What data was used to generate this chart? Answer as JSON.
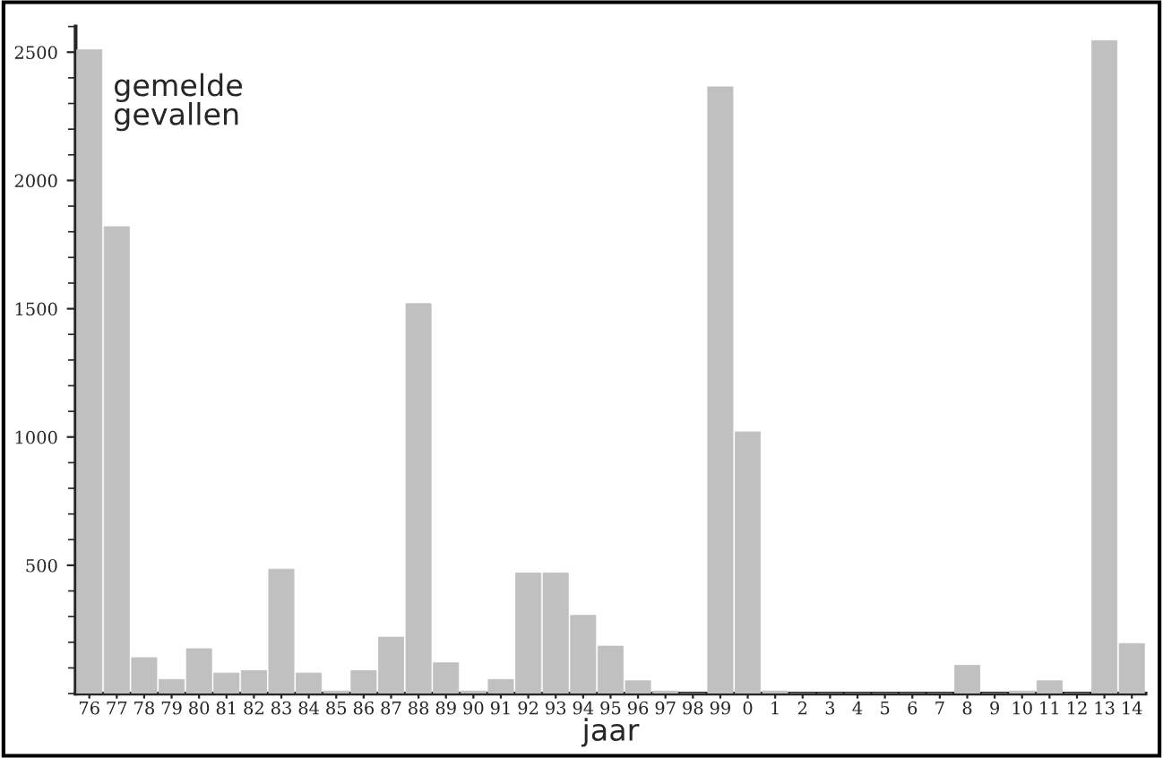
{
  "chart_data": {
    "type": "bar",
    "ylabel": "gemelde\ngevallen",
    "xlabel": "jaar",
    "categories": [
      "76",
      "77",
      "78",
      "79",
      "80",
      "81",
      "82",
      "83",
      "84",
      "85",
      "86",
      "87",
      "88",
      "89",
      "90",
      "91",
      "92",
      "93",
      "94",
      "95",
      "96",
      "97",
      "98",
      "99",
      "0",
      "1",
      "2",
      "3",
      "4",
      "5",
      "6",
      "7",
      "8",
      "9",
      "10",
      "11",
      "12",
      "13",
      "14"
    ],
    "values": [
      2510,
      1820,
      140,
      55,
      175,
      80,
      90,
      485,
      80,
      10,
      90,
      220,
      1520,
      120,
      10,
      55,
      470,
      470,
      305,
      185,
      50,
      10,
      0,
      2365,
      1020,
      10,
      0,
      0,
      0,
      0,
      0,
      0,
      110,
      0,
      10,
      50,
      0,
      2545,
      195
    ],
    "color": "#c0c0c0",
    "ylim": [
      0,
      2600
    ],
    "yticks": [
      500,
      1000,
      1500,
      2000,
      2500
    ],
    "grid": false
  }
}
